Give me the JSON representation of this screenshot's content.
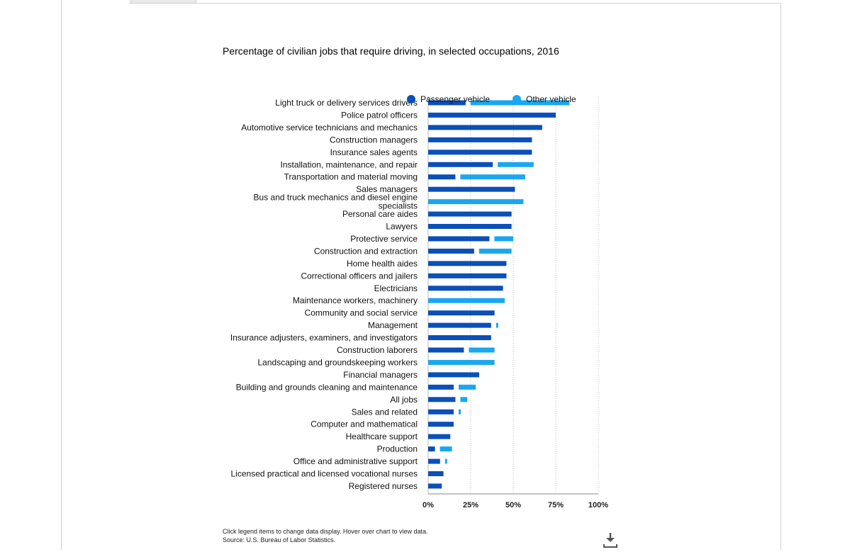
{
  "title": "Percentage of civilian jobs that require driving, in selected occupations, 2016",
  "footnote": {
    "line1": "Click legend items to change data display. Hover over chart to view data.",
    "line2": "Source: U.S. Bureau of Labor Statistics."
  },
  "colors": {
    "passenger": "#0b4fb8",
    "other": "#1aa7f0",
    "grid": "#bbbbbb"
  },
  "icons": {
    "download": "download-icon"
  },
  "chart_data": {
    "type": "bar",
    "orientation": "horizontal",
    "stacked": true,
    "title": "Percentage of civilian jobs that require driving, in selected occupations, 2016",
    "xlim": [
      0,
      100
    ],
    "xticks": [
      "0%",
      "25%",
      "50%",
      "75%",
      "100%"
    ],
    "grid": "vertical dotted",
    "legend": {
      "placement": "top-right",
      "items": [
        "Passenger vehicle",
        "Other vehicle"
      ]
    },
    "categories": [
      "Light truck or delivery services drivers",
      "Police patrol officers",
      "Automotive service technicians and mechanics",
      "Construction managers",
      "Insurance sales agents",
      "Installation, maintenance, and repair",
      "Transportation and material moving",
      "Sales managers",
      "Bus and truck mechanics and diesel engine specialists",
      "Personal care aides",
      "Lawyers",
      "Protective service",
      "Construction and extraction",
      "Home health aides",
      "Correctional officers and jailers",
      "Electricians",
      "Maintenance workers, machinery",
      "Community and social service",
      "Management",
      "Insurance adjusters, examiners, and investigators",
      "Construction laborers",
      "Landscaping and groundskeeping workers",
      "Financial managers",
      "Building and grounds cleaning and maintenance",
      "All jobs",
      "Sales and related",
      "Computer and mathematical",
      "Healthcare support",
      "Production",
      "Office and administrative support",
      "Licensed practical and licensed vocational nurses",
      "Registered nurses"
    ],
    "series": [
      {
        "name": "Passenger vehicle",
        "values": [
          22,
          75,
          67,
          61,
          61,
          38,
          16,
          51,
          0,
          49,
          49,
          36,
          27,
          46,
          46,
          44,
          0,
          39,
          37,
          37,
          21,
          0,
          30,
          15,
          16,
          15,
          15,
          13,
          4,
          7,
          9,
          8
        ]
      },
      {
        "name": "Other vehicle",
        "values": [
          61,
          0,
          0,
          0,
          0,
          24,
          41,
          0,
          56,
          0,
          0,
          14,
          22,
          0,
          0,
          0,
          45,
          0,
          2,
          0,
          18,
          39,
          0,
          13,
          7,
          1,
          0,
          0,
          10,
          3,
          0,
          0
        ]
      }
    ]
  }
}
